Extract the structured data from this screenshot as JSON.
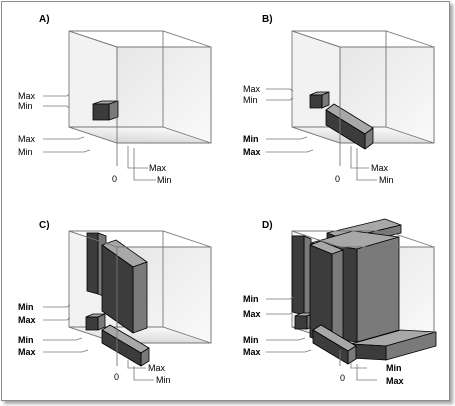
{
  "panels": [
    {
      "label": "A)",
      "left_labels": [
        {
          "text": "Max",
          "bold": false
        },
        {
          "text": "Min",
          "bold": false
        },
        {
          "text": "Max",
          "bold": false
        },
        {
          "text": "Min",
          "bold": false
        }
      ],
      "origin_label": "0",
      "bottom_labels": [
        {
          "text": "Max",
          "bold": false
        },
        {
          "text": "Min",
          "bold": false
        }
      ]
    },
    {
      "label": "B)",
      "left_labels": [
        {
          "text": "Max",
          "bold": false
        },
        {
          "text": "Min",
          "bold": false
        },
        {
          "text": "Min",
          "bold": true
        },
        {
          "text": "Max",
          "bold": true
        }
      ],
      "origin_label": "0",
      "bottom_labels": [
        {
          "text": "Max",
          "bold": false
        },
        {
          "text": "Min",
          "bold": false
        }
      ]
    },
    {
      "label": "C)",
      "left_labels": [
        {
          "text": "Min",
          "bold": true
        },
        {
          "text": "Max",
          "bold": true
        },
        {
          "text": "Min",
          "bold": true
        },
        {
          "text": "Max",
          "bold": true
        }
      ],
      "origin_label": "0",
      "bottom_labels": [
        {
          "text": "Max",
          "bold": false
        },
        {
          "text": "Min",
          "bold": false
        }
      ]
    },
    {
      "label": "D)",
      "left_labels": [
        {
          "text": "Min",
          "bold": true
        },
        {
          "text": "Max",
          "bold": true
        },
        {
          "text": "Min",
          "bold": true
        },
        {
          "text": "Max",
          "bold": true
        }
      ],
      "origin_label": "0",
      "bottom_labels": [
        {
          "text": "Min",
          "bold": true
        },
        {
          "text": "Max",
          "bold": true
        }
      ]
    }
  ],
  "colors": {
    "block_front": "#3c3c3c",
    "block_top": "#a8a8a8",
    "block_side": "#7a7a7a",
    "floor_light": "#f4f4f4",
    "floor_dark": "#d6d6d6",
    "back_wall": "#f0f0f0",
    "line": "#777777"
  }
}
